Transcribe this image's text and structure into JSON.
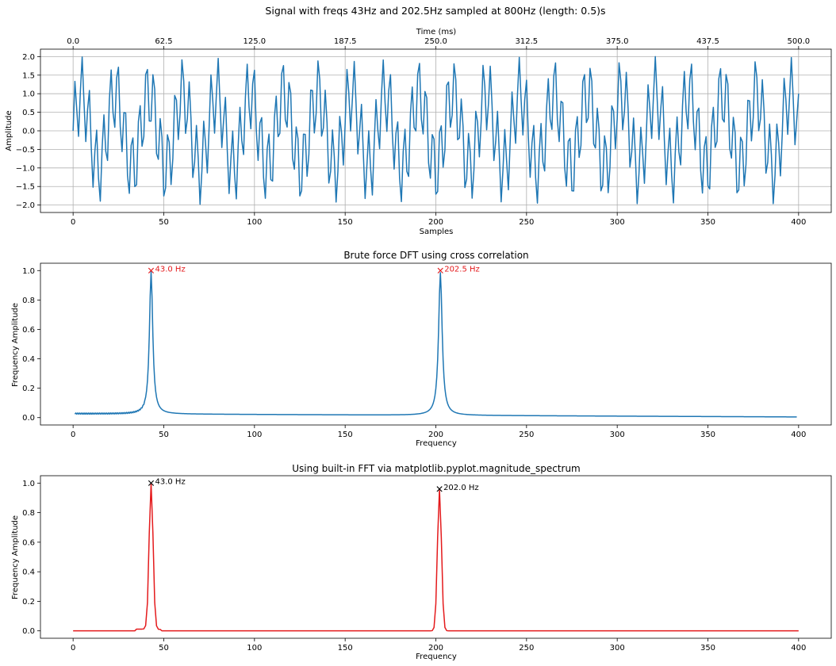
{
  "figure": {
    "suptitle": "Signal with freqs 43Hz and 202.5Hz sampled at 800Hz (length: 0.5)s"
  },
  "chart_data": [
    {
      "type": "line",
      "title": "",
      "xlabel": "Samples",
      "ylabel": "Amplitude",
      "top_xlabel": "Time (ms)",
      "xlim": [
        -18,
        418
      ],
      "ylim": [
        -2.2,
        2.2
      ],
      "xticks": [
        0,
        50,
        100,
        150,
        200,
        250,
        300,
        350,
        400
      ],
      "yticks": [
        -2.0,
        -1.5,
        -1.0,
        -0.5,
        0.0,
        0.5,
        1.0,
        1.5,
        2.0
      ],
      "ytick_labels": [
        "−2.0",
        "−1.5",
        "−1.0",
        "−0.5",
        "0.0",
        "0.5",
        "1.0",
        "1.5",
        "2.0"
      ],
      "top_ticks": [
        0,
        50,
        100,
        150,
        200,
        250,
        300,
        350,
        400
      ],
      "top_tick_labels": [
        "0.0",
        "62.5",
        "125.0",
        "187.5",
        "250.0",
        "312.5",
        "375.0",
        "437.5",
        "500.0"
      ],
      "grid": true,
      "series": [
        {
          "color": "#1f77b4",
          "generator": "sin(2π·43·n/800) + sin(2π·202.5·n/800)",
          "n_range": [
            0,
            400
          ]
        }
      ]
    },
    {
      "type": "line",
      "title": "Brute force DFT using cross correlation",
      "xlabel": "Frequency",
      "ylabel": "Frequency Amplitude",
      "xlim": [
        -18,
        418
      ],
      "ylim": [
        -0.05,
        1.05
      ],
      "xticks": [
        0,
        50,
        100,
        150,
        200,
        250,
        300,
        350,
        400
      ],
      "yticks": [
        0.0,
        0.2,
        0.4,
        0.6,
        0.8,
        1.0
      ],
      "ytick_labels": [
        "0.0",
        "0.2",
        "0.4",
        "0.6",
        "0.8",
        "1.0"
      ],
      "grid": false,
      "series": [
        {
          "color": "#1f77b4",
          "x_range": [
            1,
            399
          ],
          "peaks": [
            43.0,
            202.5
          ],
          "baseline": [
            0.03,
            0.005
          ]
        }
      ],
      "annotations": [
        {
          "x": 43.0,
          "y": 1.0,
          "label": "43.0 Hz",
          "marker": "x",
          "color": "#e41a1c"
        },
        {
          "x": 202.5,
          "y": 1.0,
          "label": "202.5 Hz",
          "marker": "x",
          "color": "#e41a1c"
        }
      ]
    },
    {
      "type": "line",
      "title": "Using built-in FFT via matplotlib.pyplot.magnitude_spectrum",
      "xlabel": "Frequency",
      "ylabel": "Frequency Amplitude",
      "xlim": [
        -18,
        418
      ],
      "ylim": [
        -0.05,
        1.05
      ],
      "xticks": [
        0,
        50,
        100,
        150,
        200,
        250,
        300,
        350,
        400
      ],
      "yticks": [
        0.0,
        0.2,
        0.4,
        0.6,
        0.8,
        1.0
      ],
      "ytick_labels": [
        "0.0",
        "0.2",
        "0.4",
        "0.6",
        "0.8",
        "1.0"
      ],
      "grid": false,
      "series": [
        {
          "color": "#e41a1c",
          "x_range": [
            0,
            400
          ],
          "peaks": [
            43.0,
            202.0
          ],
          "peak_heights": [
            1.0,
            0.96
          ]
        }
      ],
      "annotations": [
        {
          "x": 43.0,
          "y": 1.0,
          "label": "43.0 Hz",
          "marker": "x",
          "color": "#000000"
        },
        {
          "x": 202.0,
          "y": 0.96,
          "label": "202.0 Hz",
          "marker": "x",
          "color": "#000000"
        }
      ]
    }
  ]
}
